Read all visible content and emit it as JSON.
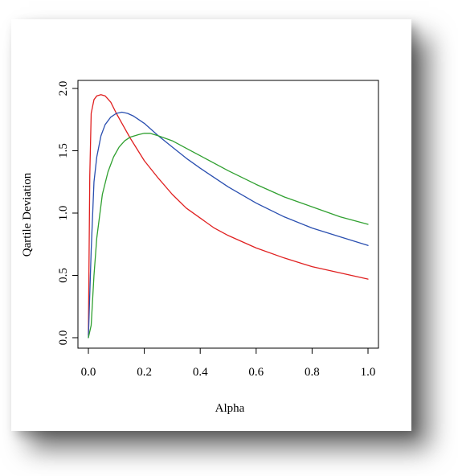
{
  "chart_data": {
    "type": "line",
    "title": "",
    "xlabel": "Alpha",
    "ylabel": "Qartile Deviation",
    "xlim": [
      0.0,
      1.0
    ],
    "ylim": [
      0.0,
      2.0
    ],
    "x_ticks": [
      "0.0",
      "0.2",
      "0.4",
      "0.6",
      "0.8",
      "1.0"
    ],
    "y_ticks": [
      "0.0",
      "0.5",
      "1.0",
      "1.5",
      "2.0"
    ],
    "grid": false,
    "legend": "none",
    "series": [
      {
        "color": "#e02020",
        "x": [
          0.0,
          0.005,
          0.01,
          0.02,
          0.03,
          0.045,
          0.06,
          0.08,
          0.1,
          0.12,
          0.15,
          0.2,
          0.25,
          0.3,
          0.35,
          0.4,
          0.45,
          0.5,
          0.6,
          0.7,
          0.8,
          0.9,
          1.0
        ],
        "y": [
          0.02,
          1.3,
          1.8,
          1.91,
          1.94,
          1.95,
          1.94,
          1.89,
          1.8,
          1.72,
          1.6,
          1.42,
          1.28,
          1.15,
          1.04,
          0.96,
          0.88,
          0.82,
          0.72,
          0.64,
          0.57,
          0.52,
          0.47
        ]
      },
      {
        "color": "#2a4fb0",
        "x": [
          0.0,
          0.01,
          0.02,
          0.03,
          0.045,
          0.06,
          0.08,
          0.1,
          0.12,
          0.14,
          0.16,
          0.2,
          0.25,
          0.3,
          0.35,
          0.4,
          0.5,
          0.6,
          0.7,
          0.8,
          0.9,
          1.0
        ],
        "y": [
          0.0,
          0.7,
          1.25,
          1.45,
          1.62,
          1.71,
          1.77,
          1.8,
          1.81,
          1.8,
          1.78,
          1.72,
          1.62,
          1.53,
          1.44,
          1.36,
          1.21,
          1.08,
          0.97,
          0.88,
          0.81,
          0.74
        ]
      },
      {
        "color": "#30a030",
        "x": [
          0.0,
          0.01,
          0.02,
          0.03,
          0.05,
          0.07,
          0.09,
          0.11,
          0.13,
          0.15,
          0.18,
          0.2,
          0.22,
          0.25,
          0.3,
          0.35,
          0.4,
          0.5,
          0.6,
          0.7,
          0.8,
          0.9,
          1.0
        ],
        "y": [
          0.0,
          0.1,
          0.5,
          0.8,
          1.15,
          1.33,
          1.45,
          1.53,
          1.58,
          1.61,
          1.63,
          1.64,
          1.64,
          1.62,
          1.58,
          1.52,
          1.46,
          1.34,
          1.23,
          1.13,
          1.05,
          0.97,
          0.91
        ]
      }
    ]
  }
}
